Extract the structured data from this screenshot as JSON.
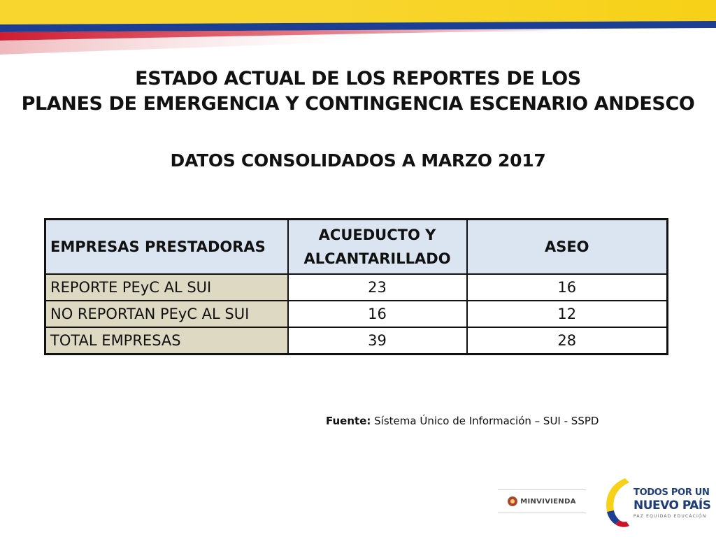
{
  "title": {
    "line1": "ESTADO ACTUAL DE LOS REPORTES DE LOS",
    "line2": "PLANES DE EMERGENCIA Y CONTINGENCIA ESCENARIO ANDESCO"
  },
  "subtitle": "DATOS CONSOLIDADOS A MARZO 2017",
  "table": {
    "headers": [
      "EMPRESAS PRESTADORAS",
      "ACUEDUCTO Y ALCANTARILLADO",
      "ASEO"
    ],
    "rows": [
      [
        "REPORTE PEyC AL SUI",
        "23",
        "16"
      ],
      [
        "NO REPORTAN PEyC AL SUI",
        "16",
        "12"
      ],
      [
        "TOTAL EMPRESAS",
        "39",
        "28"
      ]
    ]
  },
  "source": {
    "label": "Fuente:",
    "text": "Sístema Único de Información – SUI - SSPD"
  },
  "logos": {
    "minvivienda": "MINVIVIENDA",
    "pais_line1": "TODOS POR UN",
    "pais_line2": "NUEVO PAÍS",
    "pais_line3": "PAZ   EQUIDAD   EDUCACIÓN"
  },
  "colors": {
    "flag_yellow": "#f7d117",
    "flag_blue": "#1c3f94",
    "flag_red": "#ce1126",
    "header_bg": "#dbe5f1",
    "label_bg": "#ddd9c3"
  }
}
